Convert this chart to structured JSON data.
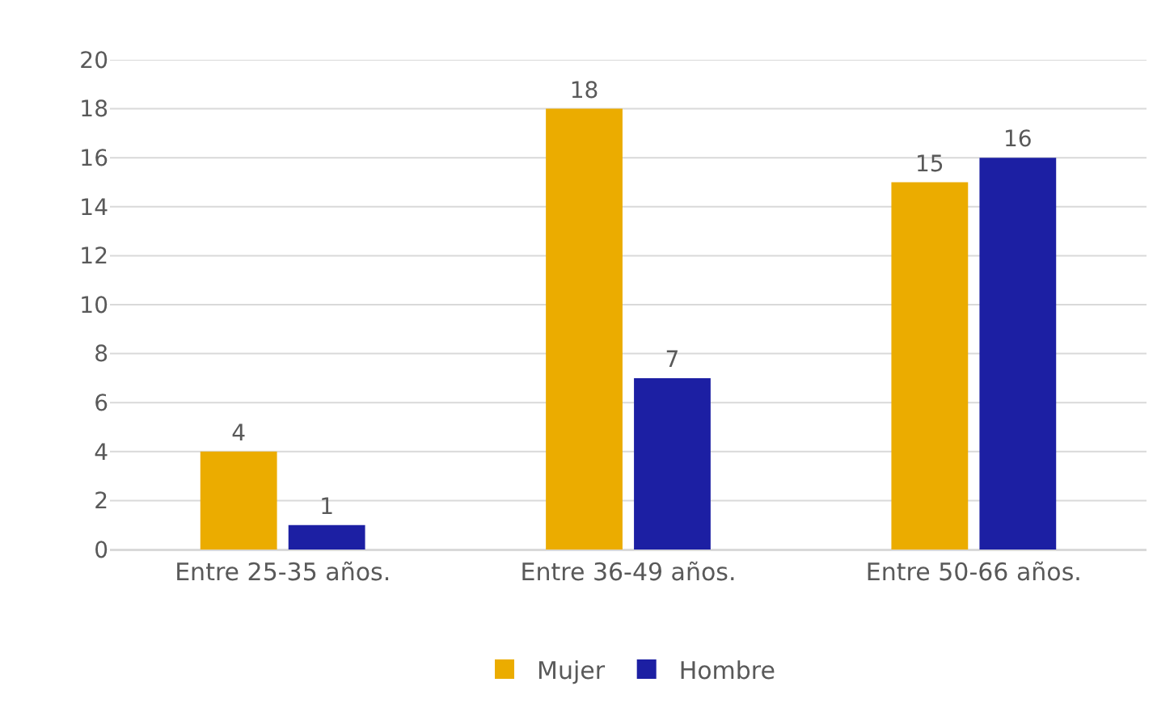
{
  "chart_data": {
    "type": "bar",
    "categories": [
      "Entre 25-35 años.",
      "Entre 36-49 años.",
      "Entre 50-66 años."
    ],
    "series": [
      {
        "name": "Mujer",
        "color": "#ebac00",
        "values": [
          4,
          18,
          15
        ]
      },
      {
        "name": "Hombre",
        "color": "#1c1fa3",
        "values": [
          1,
          7,
          16
        ]
      }
    ],
    "ylim": [
      0,
      20
    ],
    "yticks": [
      0,
      2,
      4,
      6,
      8,
      10,
      12,
      14,
      16,
      18,
      20
    ],
    "grid": "y",
    "legend": "bottom",
    "data_labels": true
  }
}
